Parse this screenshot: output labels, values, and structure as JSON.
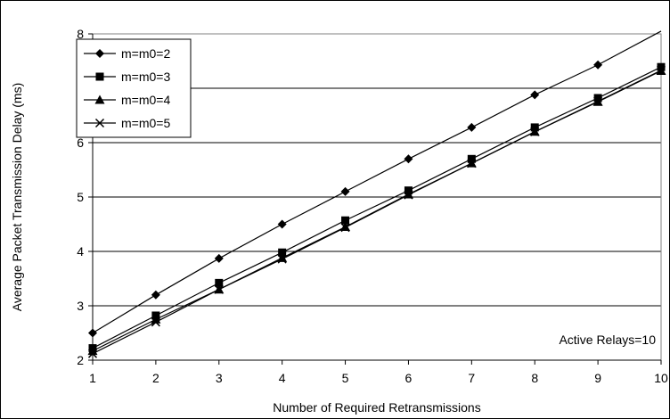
{
  "chart_data": {
    "type": "line",
    "title": "",
    "xlabel": "Number of Required Retransmissions",
    "ylabel": "Average Packet Transmission Delay (ms)",
    "x": [
      1,
      2,
      3,
      4,
      5,
      6,
      7,
      8,
      9,
      10
    ],
    "xlim": [
      1,
      10
    ],
    "ylim": [
      2,
      8
    ],
    "yticks": [
      2,
      3,
      4,
      5,
      6,
      7,
      8
    ],
    "grid": "horizontal",
    "legend_position": "top-left",
    "series": [
      {
        "name": "m=m0=2",
        "marker": "diamond",
        "values": [
          2.5,
          3.2,
          3.87,
          4.5,
          5.1,
          5.7,
          6.28,
          6.88,
          7.43,
          8.05
        ]
      },
      {
        "name": "m=m0=3",
        "marker": "square",
        "values": [
          2.22,
          2.82,
          3.42,
          3.98,
          4.57,
          5.12,
          5.7,
          6.28,
          6.82,
          7.39
        ]
      },
      {
        "name": "m=m0=4",
        "marker": "triangle",
        "values": [
          2.17,
          2.75,
          3.3,
          3.88,
          4.45,
          5.05,
          5.62,
          6.2,
          6.75,
          7.32
        ]
      },
      {
        "name": "m=m0=5",
        "marker": "x",
        "values": [
          2.12,
          2.7,
          3.3,
          3.86,
          4.44,
          5.04,
          5.62,
          6.2,
          6.76,
          7.33
        ]
      }
    ],
    "annotation": "Active Relays=10"
  }
}
